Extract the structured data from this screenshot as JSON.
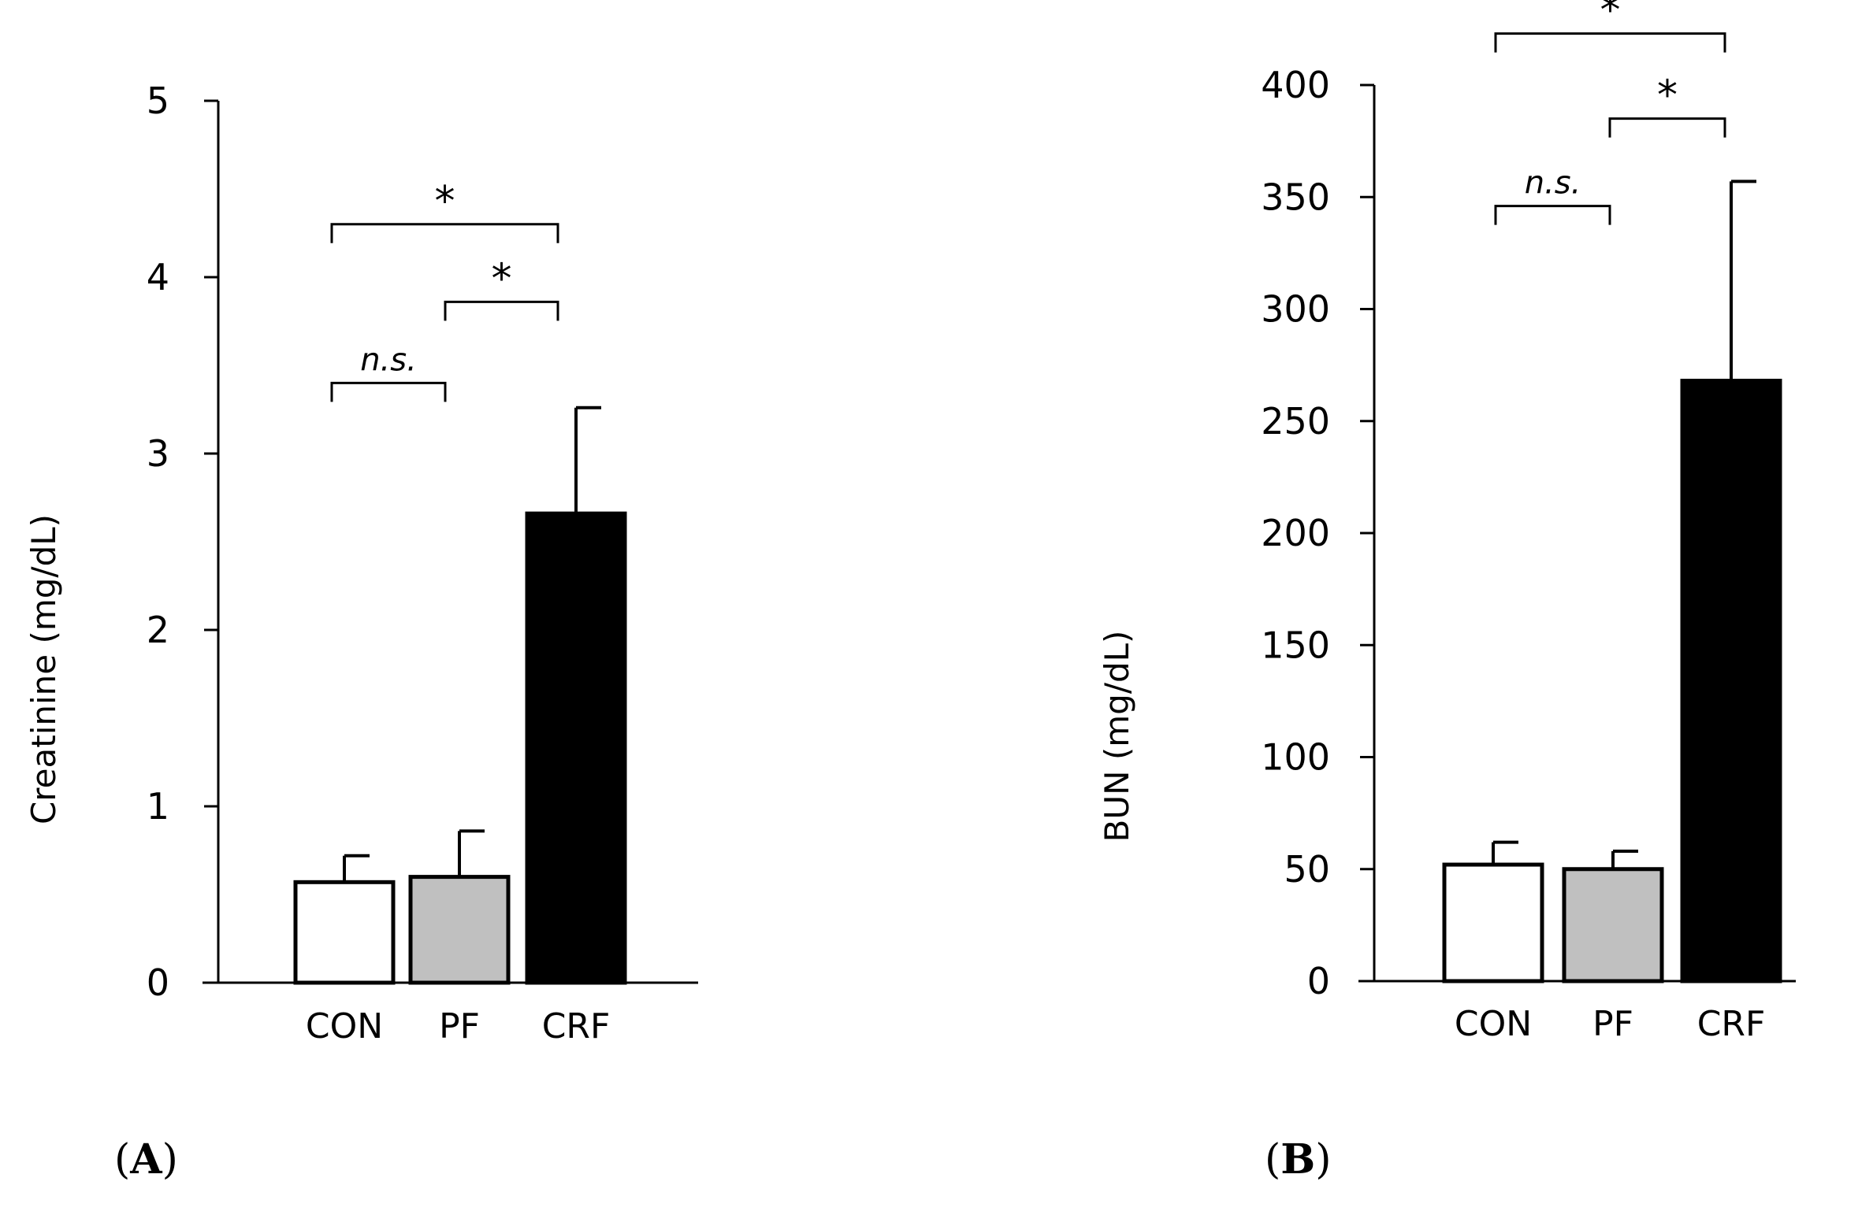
{
  "chart_data": [
    {
      "type": "bar",
      "panel": "A",
      "panel_label": "A",
      "categories": [
        "CON",
        "PF",
        "CRF"
      ],
      "values": [
        0.57,
        0.6,
        2.66
      ],
      "errors": [
        0.15,
        0.26,
        0.6
      ],
      "colors": [
        "#ffffff",
        "#c0c0c0",
        "#000000"
      ],
      "ylabel": "Creatinine (mg/dL)",
      "ylim": [
        0,
        5
      ],
      "yticks": [
        0,
        1,
        2,
        3,
        4,
        5
      ],
      "ytick_labels": [
        "0",
        "1",
        "2",
        "3",
        "4",
        "5"
      ],
      "significance": [
        {
          "from": 0,
          "to": 1,
          "label": "n.s.",
          "y": 3.4
        },
        {
          "from": 1,
          "to": 2,
          "label": "*",
          "y": 3.86
        },
        {
          "from": 0,
          "to": 2,
          "label": "*",
          "y": 4.3
        }
      ]
    },
    {
      "type": "bar",
      "panel": "B",
      "panel_label": "B",
      "categories": [
        "CON",
        "PF",
        "CRF"
      ],
      "values": [
        52,
        50,
        268
      ],
      "errors": [
        10,
        8,
        89
      ],
      "colors": [
        "#ffffff",
        "#c0c0c0",
        "#000000"
      ],
      "ylabel": "BUN (mg/dL)",
      "ylim": [
        0,
        420
      ],
      "yticks": [
        0,
        50,
        100,
        150,
        200,
        250,
        300,
        350,
        400
      ],
      "ytick_labels": [
        "0",
        "50",
        "100",
        "150",
        "200",
        "250",
        "300",
        "350",
        "400"
      ],
      "significance": [
        {
          "from": 0,
          "to": 1,
          "label": "n.s.",
          "y": 346
        },
        {
          "from": 1,
          "to": 2,
          "label": "*",
          "y": 385
        },
        {
          "from": 0,
          "to": 2,
          "label": "*",
          "y": 423
        }
      ]
    }
  ]
}
